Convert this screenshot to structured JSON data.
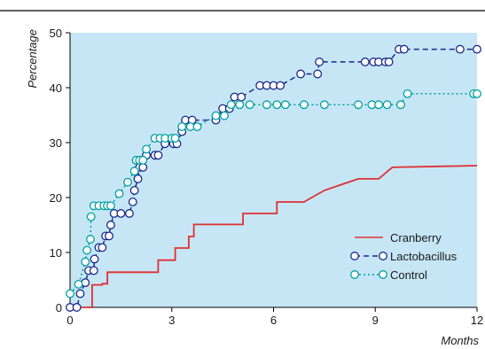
{
  "chart_data": {
    "type": "line",
    "title": "",
    "xlabel": "Months",
    "ylabel": "Percentage",
    "xlim": [
      0,
      12
    ],
    "ylim": [
      0,
      50
    ],
    "xticks": [
      0,
      3,
      6,
      9,
      12
    ],
    "yticks": [
      0,
      10,
      20,
      30,
      40,
      50
    ],
    "grid": false,
    "background_color": "#c6e6f6",
    "legend_placement": "lower-right",
    "series": [
      {
        "name": "Cranberry",
        "color": "#e03030",
        "style": "solid-step",
        "markers": false,
        "points": [
          [
            0,
            0
          ],
          [
            0.65,
            0
          ],
          [
            0.65,
            4.1
          ],
          [
            0.95,
            4.1
          ],
          [
            0.95,
            4.3
          ],
          [
            1.1,
            4.3
          ],
          [
            1.1,
            6.4
          ],
          [
            2.6,
            6.4
          ],
          [
            2.6,
            8.6
          ],
          [
            3.1,
            8.6
          ],
          [
            3.1,
            10.8
          ],
          [
            3.5,
            10.8
          ],
          [
            3.5,
            12.9
          ],
          [
            3.65,
            12.9
          ],
          [
            3.65,
            15.1
          ],
          [
            5.1,
            15.1
          ],
          [
            5.1,
            17.1
          ],
          [
            6.1,
            17.1
          ],
          [
            6.1,
            19.2
          ],
          [
            6.9,
            19.2
          ],
          [
            7.5,
            21.3
          ],
          [
            8.5,
            23.4
          ],
          [
            9.1,
            23.4
          ],
          [
            9.5,
            25.5
          ],
          [
            12,
            25.8
          ]
        ]
      },
      {
        "name": "Lactobacillus",
        "color": "#1a2a8a",
        "style": "dashed",
        "markers": true,
        "points": [
          [
            0,
            0
          ],
          [
            0.2,
            0
          ],
          [
            0.3,
            2.5
          ],
          [
            0.45,
            4.5
          ],
          [
            0.55,
            6.7
          ],
          [
            0.7,
            6.7
          ],
          [
            0.72,
            8.8
          ],
          [
            0.85,
            10.9
          ],
          [
            0.95,
            10.9
          ],
          [
            1.05,
            13
          ],
          [
            1.15,
            13
          ],
          [
            1.2,
            15
          ],
          [
            1.3,
            17.1
          ],
          [
            1.5,
            17.1
          ],
          [
            1.75,
            17.1
          ],
          [
            1.85,
            19.2
          ],
          [
            1.9,
            21.3
          ],
          [
            2.0,
            23.4
          ],
          [
            2.05,
            25.5
          ],
          [
            2.15,
            25.5
          ],
          [
            2.25,
            27.7
          ],
          [
            2.5,
            27.7
          ],
          [
            2.6,
            27.7
          ],
          [
            2.8,
            29.8
          ],
          [
            3.05,
            29.8
          ],
          [
            3.15,
            29.8
          ],
          [
            3.3,
            32
          ],
          [
            3.4,
            34.1
          ],
          [
            3.6,
            34.1
          ],
          [
            4.3,
            34.1
          ],
          [
            4.5,
            36.2
          ],
          [
            4.7,
            36.2
          ],
          [
            4.85,
            38.3
          ],
          [
            5.05,
            38.3
          ],
          [
            5.6,
            40.4
          ],
          [
            5.8,
            40.4
          ],
          [
            6.0,
            40.4
          ],
          [
            6.2,
            40.4
          ],
          [
            6.8,
            42.5
          ],
          [
            7.3,
            42.5
          ],
          [
            7.35,
            44.7
          ],
          [
            8.7,
            44.7
          ],
          [
            8.95,
            44.7
          ],
          [
            9.1,
            44.7
          ],
          [
            9.3,
            44.7
          ],
          [
            9.4,
            44.7
          ],
          [
            9.7,
            47
          ],
          [
            9.85,
            47
          ],
          [
            11.5,
            47
          ],
          [
            12,
            47
          ]
        ]
      },
      {
        "name": "Control",
        "color": "#00a0a0",
        "style": "dotted",
        "markers": true,
        "points": [
          [
            0,
            2.5
          ],
          [
            0.25,
            4.2
          ],
          [
            0.45,
            8.3
          ],
          [
            0.5,
            10.4
          ],
          [
            0.6,
            12.4
          ],
          [
            0.62,
            16.5
          ],
          [
            0.7,
            18.5
          ],
          [
            0.85,
            18.5
          ],
          [
            1.0,
            18.5
          ],
          [
            1.1,
            18.5
          ],
          [
            1.2,
            18.5
          ],
          [
            1.45,
            20.7
          ],
          [
            1.7,
            22.8
          ],
          [
            1.9,
            24.8
          ],
          [
            1.95,
            26.8
          ],
          [
            2.05,
            26.8
          ],
          [
            2.15,
            26.8
          ],
          [
            2.25,
            28.8
          ],
          [
            2.5,
            30.8
          ],
          [
            2.65,
            30.8
          ],
          [
            2.8,
            30.8
          ],
          [
            3.0,
            30.8
          ],
          [
            3.1,
            30.8
          ],
          [
            3.3,
            32.9
          ],
          [
            3.55,
            32.9
          ],
          [
            3.75,
            32.9
          ],
          [
            4.3,
            34.9
          ],
          [
            4.55,
            34.9
          ],
          [
            4.75,
            36.9
          ],
          [
            5.0,
            36.9
          ],
          [
            5.3,
            36.9
          ],
          [
            5.8,
            36.9
          ],
          [
            6.1,
            36.9
          ],
          [
            6.35,
            36.9
          ],
          [
            6.9,
            36.9
          ],
          [
            7.5,
            36.9
          ],
          [
            8.5,
            36.9
          ],
          [
            8.9,
            36.9
          ],
          [
            9.1,
            36.9
          ],
          [
            9.35,
            36.9
          ],
          [
            9.75,
            36.9
          ],
          [
            9.95,
            38.9
          ],
          [
            11.9,
            38.9
          ],
          [
            12,
            38.9
          ]
        ]
      }
    ]
  }
}
